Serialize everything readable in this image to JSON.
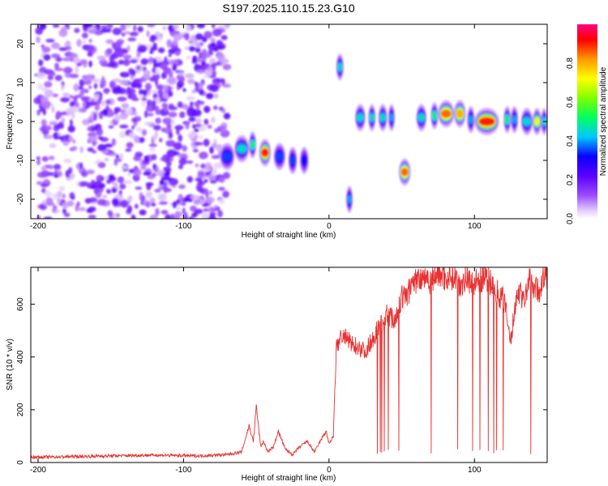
{
  "chart_data": [
    {
      "type": "heatmap",
      "title": "S197.2025.110.15.23.G10",
      "xlabel": "Height of straight line (km)",
      "ylabel": "Frequency (Hz)",
      "xlim": [
        -205,
        150
      ],
      "ylim": [
        -25,
        25
      ],
      "x_ticks": [
        -200,
        -100,
        0,
        100
      ],
      "y_ticks": [
        -20,
        -10,
        0,
        10,
        20
      ],
      "colorbar": {
        "label": "Normalized spectral amplitude",
        "range": [
          0,
          1
        ],
        "ticks": [
          "0.0",
          "0.2",
          "0.4",
          "0.6",
          "0.8"
        ],
        "colors": [
          "#ffffff",
          "#e6cfff",
          "#9b4dff",
          "#5a00ff",
          "#0a00ff",
          "#00c8ff",
          "#00ff60",
          "#7fff00",
          "#ffff00",
          "#ff9900",
          "#ff0000",
          "#ff0080"
        ]
      },
      "features": [
        {
          "x": [
            -200,
            -70
          ],
          "freq": 0,
          "kind": "broadband-noise",
          "amp": 0.2
        },
        {
          "x": [
            -75,
            -65
          ],
          "freq": -9,
          "amp": 0.35
        },
        {
          "x": [
            -65,
            -55
          ],
          "freq": -7,
          "amp": 0.45
        },
        {
          "x": [
            -55,
            -50
          ],
          "freq": -6,
          "amp": 0.5
        },
        {
          "x": [
            -48,
            -40
          ],
          "freq": -8,
          "amp": 0.9
        },
        {
          "x": [
            -38,
            -30
          ],
          "freq": -9,
          "amp": 0.35
        },
        {
          "x": [
            -28,
            -22
          ],
          "freq": -10,
          "amp": 0.35
        },
        {
          "x": [
            -20,
            -14
          ],
          "freq": -10,
          "amp": 0.3
        },
        {
          "x": [
            5,
            10
          ],
          "freq": 14,
          "amp": 0.45
        },
        {
          "x": [
            12,
            16
          ],
          "freq": -20,
          "amp": 0.4
        },
        {
          "x": [
            18,
            25
          ],
          "freq": 1,
          "amp": 0.45
        },
        {
          "x": [
            27,
            32
          ],
          "freq": 1,
          "amp": 0.45
        },
        {
          "x": [
            34,
            40
          ],
          "freq": 1,
          "amp": 0.45
        },
        {
          "x": [
            41,
            45
          ],
          "freq": 1,
          "amp": 0.4
        },
        {
          "x": [
            48,
            56
          ],
          "freq": -13,
          "amp": 0.85
        },
        {
          "x": [
            60,
            67
          ],
          "freq": 1,
          "amp": 0.45
        },
        {
          "x": [
            70,
            75
          ],
          "freq": 1.5,
          "amp": 0.5
        },
        {
          "x": [
            75,
            86
          ],
          "freq": 2,
          "amp": 0.85
        },
        {
          "x": [
            86,
            94
          ],
          "freq": 2,
          "amp": 0.8
        },
        {
          "x": [
            95,
            100
          ],
          "freq": 0.5,
          "amp": 0.4
        },
        {
          "x": [
            100,
            117
          ],
          "freq": 0,
          "amp": 0.9
        },
        {
          "x": [
            120,
            125
          ],
          "freq": 0.5,
          "amp": 0.5
        },
        {
          "x": [
            125,
            130
          ],
          "freq": 0.5,
          "amp": 0.4
        },
        {
          "x": [
            132,
            140
          ],
          "freq": 0,
          "amp": 0.45
        },
        {
          "x": [
            140,
            146
          ],
          "freq": 0,
          "amp": 0.7
        },
        {
          "x": [
            146,
            150
          ],
          "freq": 0,
          "amp": 0.45
        }
      ]
    },
    {
      "type": "line",
      "xlabel": "Height of straight line (km)",
      "ylabel": "SNR (10 * v/v)",
      "xlim": [
        -205,
        150
      ],
      "ylim": [
        0,
        740
      ],
      "x_ticks": [
        -200,
        -100,
        0,
        100
      ],
      "y_ticks": [
        0,
        200,
        400,
        600
      ],
      "color": "#e83030",
      "series": [
        {
          "x": [
            -205,
            -180,
            -150,
            -120,
            -90,
            -70,
            -60,
            -55,
            -52,
            -50,
            -47,
            -45,
            -42,
            -38,
            -35,
            -30,
            -25,
            -20,
            -15,
            -10,
            -5,
            -2,
            0,
            3,
            5,
            8,
            12,
            15,
            20,
            25,
            30,
            35,
            40,
            45,
            50,
            55,
            58,
            62,
            65,
            70,
            75,
            80,
            85,
            90,
            95,
            100,
            105,
            110,
            115,
            120,
            125,
            128,
            130,
            135,
            138,
            140,
            143,
            145,
            148,
            150
          ],
          "y": [
            20,
            22,
            25,
            28,
            25,
            30,
            40,
            140,
            80,
            215,
            60,
            80,
            40,
            60,
            120,
            50,
            30,
            60,
            80,
            40,
            90,
            120,
            70,
            100,
            430,
            480,
            470,
            450,
            440,
            420,
            470,
            520,
            560,
            540,
            620,
            650,
            680,
            700,
            710,
            690,
            720,
            700,
            710,
            680,
            700,
            680,
            700,
            690,
            650,
            620,
            460,
            600,
            650,
            620,
            700,
            680,
            650,
            660,
            700,
            700
          ]
        }
      ]
    }
  ]
}
